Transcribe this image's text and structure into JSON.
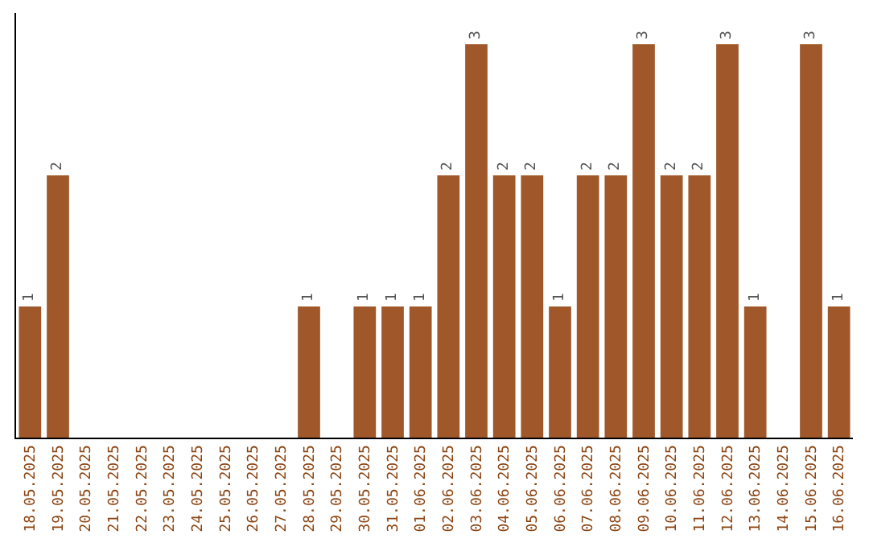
{
  "chart_data": {
    "type": "bar",
    "categories": [
      "18.05.2025",
      "19.05.2025",
      "20.05.2025",
      "21.05.2025",
      "22.05.2025",
      "23.05.2025",
      "24.05.2025",
      "25.05.2025",
      "26.05.2025",
      "27.05.2025",
      "28.05.2025",
      "29.05.2025",
      "30.05.2025",
      "31.05.2025",
      "01.06.2025",
      "02.06.2025",
      "03.06.2025",
      "04.06.2025",
      "05.06.2025",
      "06.06.2025",
      "07.06.2025",
      "08.06.2025",
      "09.06.2025",
      "10.06.2025",
      "11.06.2025",
      "12.06.2025",
      "13.06.2025",
      "14.06.2025",
      "15.06.2025",
      "16.06.2025"
    ],
    "values": [
      1,
      2,
      0,
      0,
      0,
      0,
      0,
      0,
      0,
      0,
      1,
      0,
      1,
      1,
      1,
      2,
      3,
      2,
      2,
      1,
      2,
      2,
      3,
      2,
      2,
      3,
      1,
      0,
      3,
      1
    ],
    "value_labels": [
      "1",
      "2",
      null,
      null,
      null,
      null,
      null,
      null,
      null,
      null,
      "1",
      null,
      "1",
      "1",
      "1",
      "2",
      "3",
      "2",
      "2",
      "1",
      "2",
      "2",
      "3",
      "2",
      "2",
      "3",
      "1",
      null,
      "3",
      "1"
    ],
    "color": "#a0582a",
    "tick_labels": "x"
  }
}
